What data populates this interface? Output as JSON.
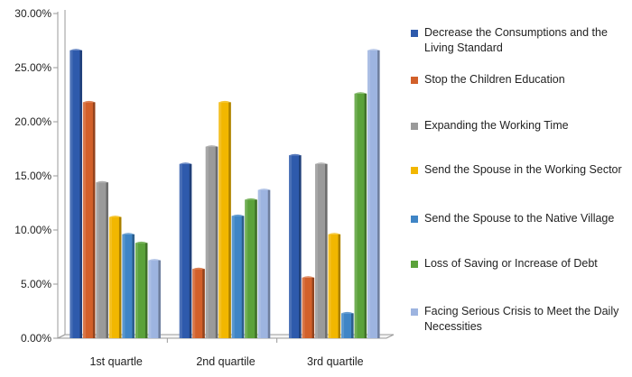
{
  "chart_data": {
    "type": "bar",
    "categories": [
      "1st quartle",
      "2nd quartile",
      "3rd quartile"
    ],
    "series": [
      {
        "name": "Decrease the Consumptions and the Living Standard",
        "color": "#2E5AAC",
        "values": [
          26.6,
          16.1,
          16.9
        ]
      },
      {
        "name": "Stop the Children Education",
        "color": "#D2602A",
        "values": [
          21.8,
          6.4,
          5.6
        ]
      },
      {
        "name": "Expanding the Working Time",
        "color": "#9A9A9A",
        "values": [
          14.4,
          17.7,
          16.1
        ]
      },
      {
        "name": "Send the Spouse in the Working Sector",
        "color": "#F2B700",
        "values": [
          11.2,
          21.8,
          9.6
        ]
      },
      {
        "name": "Send the Spouse to the Native Village",
        "color": "#3F85C6",
        "values": [
          9.6,
          11.3,
          2.3
        ]
      },
      {
        "name": "Loss of Saving or Increase of Debt",
        "color": "#5BA23A",
        "values": [
          8.8,
          12.8,
          22.6
        ]
      },
      {
        "name": "Facing Serious Crisis to Meet the Daily Necessities",
        "color": "#9DB4E0",
        "values": [
          7.2,
          13.7,
          26.6
        ]
      }
    ],
    "y_ticks": [
      "0.00%",
      "5.00%",
      "10.00%",
      "15.00%",
      "20.00%",
      "25.00%",
      "30.00%"
    ],
    "ylim": [
      0,
      30
    ],
    "legend_position": "right",
    "grid": false
  }
}
